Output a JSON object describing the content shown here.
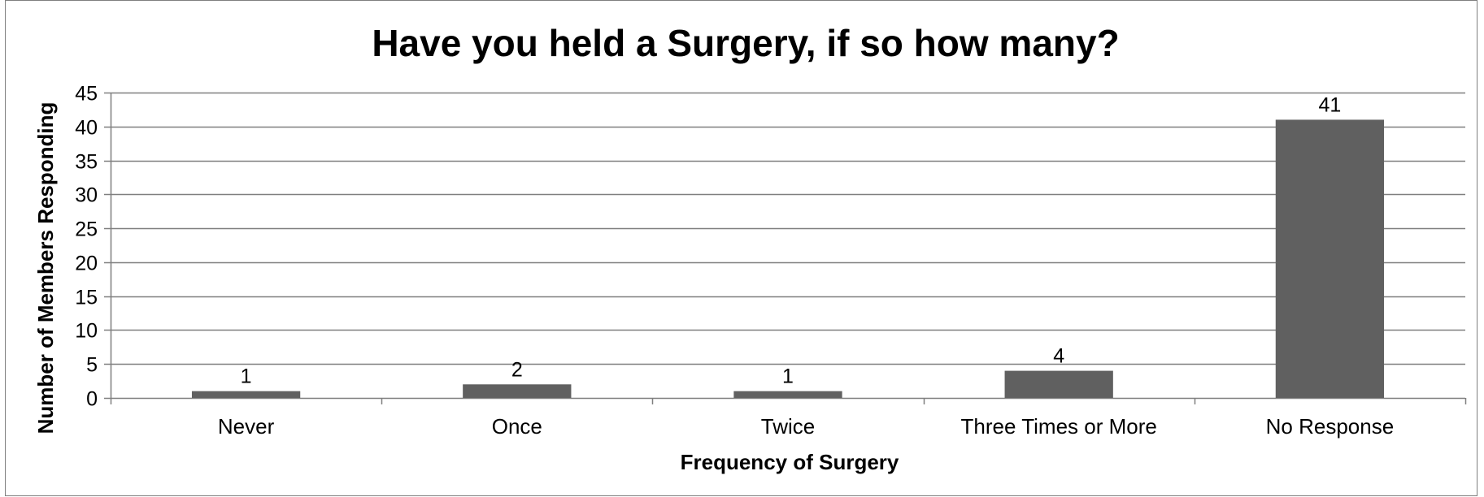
{
  "chart_data": {
    "type": "bar",
    "title": "Have you held a Surgery, if so how many?",
    "xlabel": "Frequency of Surgery",
    "ylabel": "Number of Members Responding",
    "categories": [
      "Never",
      "Once",
      "Twice",
      "Three Times or More",
      "No Response"
    ],
    "values": [
      1,
      2,
      1,
      4,
      41
    ],
    "data_labels": [
      "1",
      "2",
      "1",
      "4",
      "41"
    ],
    "ylim": [
      0,
      45
    ],
    "yticks": [
      0,
      5,
      10,
      15,
      20,
      25,
      30,
      35,
      40,
      45
    ],
    "grid": true,
    "legend": "none",
    "colors": {
      "bar": "#606060",
      "grid": "#7f7f7f",
      "axis": "#7f7f7f"
    }
  }
}
